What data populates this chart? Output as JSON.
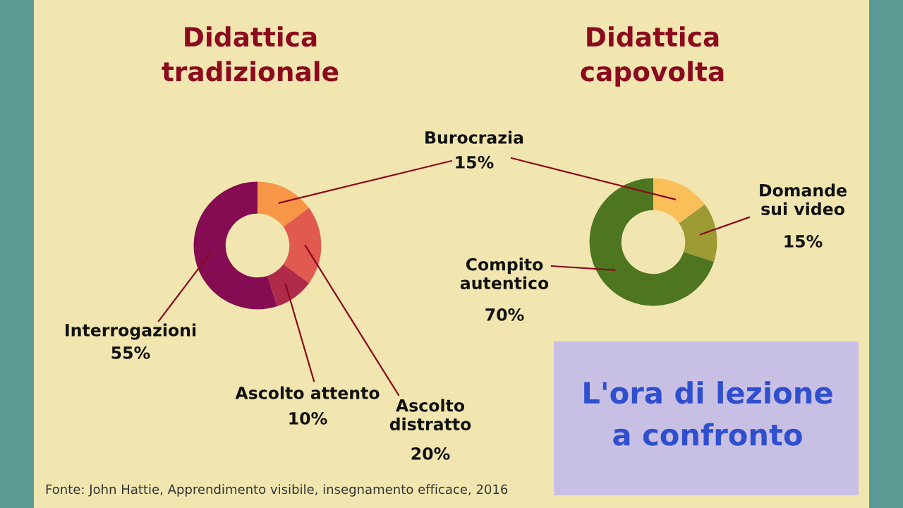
{
  "chart_data": [
    {
      "type": "donut",
      "title": "Didattica tradizionale",
      "categories": [
        "Burocrazia",
        "Ascolto distratto",
        "Ascolto attento",
        "Interrogazioni"
      ],
      "values": [
        15,
        20,
        10,
        55
      ],
      "colors": [
        "#f79646",
        "#e05a4f",
        "#b02a4a",
        "#850b52"
      ],
      "value_labels": [
        "15%",
        "20%",
        "10%",
        "55%"
      ],
      "annotations": [
        "Fonte: John Hattie, Apprendimento visibile, insegnamento efficace, 2016"
      ]
    },
    {
      "type": "donut",
      "title": "Didattica capovolta",
      "categories": [
        null,
        "Domande sui video",
        "Compito autentico"
      ],
      "values": [
        15,
        15,
        70
      ],
      "colors": [
        "#fbbf5a",
        "#9c9a33",
        "#4e7520"
      ],
      "value_labels": [
        null,
        "15%",
        "70%"
      ],
      "annotations": [
        "L'ora di lezione a confronto"
      ]
    }
  ]
}
